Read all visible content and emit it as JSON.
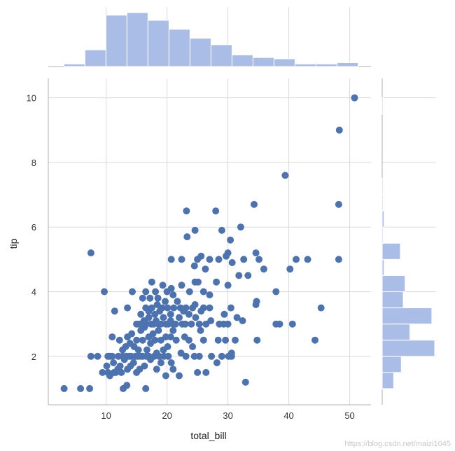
{
  "chart_data": {
    "type": "scatter",
    "xlabel": "total_bill",
    "ylabel": "tip",
    "xlim": [
      0.5,
      53.5
    ],
    "ylim": [
      0.5,
      10.6
    ],
    "xticks": [
      10,
      20,
      30,
      40,
      50
    ],
    "yticks": [
      2,
      4,
      6,
      8,
      10
    ],
    "grid": true,
    "point_color": "#4c72b0",
    "hist_color": "#a9bde6",
    "grid_color": "#d9d9d9",
    "points": [
      [
        3.1,
        1.0
      ],
      [
        5.8,
        1.0
      ],
      [
        7.3,
        1.0
      ],
      [
        16.5,
        1.0
      ],
      [
        13.4,
        1.1
      ],
      [
        12.8,
        1.0
      ],
      [
        7.5,
        5.2
      ],
      [
        9.7,
        4.0
      ],
      [
        14.3,
        4.0
      ],
      [
        17.5,
        4.3
      ],
      [
        11.4,
        3.4
      ],
      [
        13.5,
        3.5
      ],
      [
        7.5,
        2.0
      ],
      [
        8.6,
        2.0
      ],
      [
        9.4,
        1.5
      ],
      [
        10.1,
        1.7
      ],
      [
        10.3,
        1.5
      ],
      [
        10.6,
        1.4
      ],
      [
        10.3,
        2.0
      ],
      [
        10.6,
        2.0
      ],
      [
        11.0,
        2.0
      ],
      [
        11.2,
        1.8
      ],
      [
        11.3,
        1.5
      ],
      [
        11.6,
        1.5
      ],
      [
        11.9,
        1.6
      ],
      [
        12.0,
        2.0
      ],
      [
        12.3,
        1.7
      ],
      [
        12.5,
        1.5
      ],
      [
        12.7,
        2.0
      ],
      [
        13.0,
        1.9
      ],
      [
        13.3,
        2.0
      ],
      [
        13.5,
        1.6
      ],
      [
        13.8,
        2.0
      ],
      [
        14.0,
        1.7
      ],
      [
        14.1,
        2.0
      ],
      [
        14.5,
        1.8
      ],
      [
        14.8,
        2.0
      ],
      [
        15.0,
        1.5
      ],
      [
        15.2,
        2.0
      ],
      [
        15.5,
        1.6
      ],
      [
        15.7,
        2.0
      ],
      [
        16.0,
        2.0
      ],
      [
        16.3,
        1.7
      ],
      [
        16.6,
        2.0
      ],
      [
        17.0,
        2.0
      ],
      [
        17.3,
        1.9
      ],
      [
        17.9,
        2.0
      ],
      [
        18.3,
        1.6
      ],
      [
        18.7,
        2.0
      ],
      [
        19.0,
        1.8
      ],
      [
        19.5,
        2.0
      ],
      [
        19.8,
        1.4
      ],
      [
        20.2,
        2.0
      ],
      [
        20.7,
        1.8
      ],
      [
        21.0,
        1.6
      ],
      [
        22.0,
        1.4
      ],
      [
        23.1,
        2.0
      ],
      [
        24.5,
        2.0
      ],
      [
        25.0,
        1.5
      ],
      [
        25.3,
        2.0
      ],
      [
        26.4,
        1.5
      ],
      [
        27.3,
        2.0
      ],
      [
        28.2,
        1.8
      ],
      [
        30.1,
        2.0
      ],
      [
        30.6,
        2.0
      ],
      [
        32.9,
        1.2
      ],
      [
        11.0,
        2.6
      ],
      [
        12.2,
        2.5
      ],
      [
        12.7,
        2.2
      ],
      [
        13.2,
        2.3
      ],
      [
        13.5,
        2.6
      ],
      [
        13.9,
        2.4
      ],
      [
        14.2,
        2.7
      ],
      [
        14.6,
        2.3
      ],
      [
        15.0,
        2.5
      ],
      [
        15.3,
        2.2
      ],
      [
        15.7,
        2.8
      ],
      [
        16.0,
        2.5
      ],
      [
        16.3,
        2.9
      ],
      [
        16.7,
        2.2
      ],
      [
        17.0,
        2.6
      ],
      [
        17.3,
        2.4
      ],
      [
        17.7,
        2.7
      ],
      [
        18.0,
        2.5
      ],
      [
        18.3,
        2.1
      ],
      [
        18.6,
        2.8
      ],
      [
        19.0,
        2.5
      ],
      [
        19.4,
        2.2
      ],
      [
        19.8,
        2.6
      ],
      [
        20.1,
        2.3
      ],
      [
        20.6,
        2.6
      ],
      [
        21.0,
        2.8
      ],
      [
        21.5,
        2.5
      ],
      [
        22.3,
        2.1
      ],
      [
        22.9,
        2.6
      ],
      [
        23.6,
        2.5
      ],
      [
        24.2,
        2.3
      ],
      [
        25.5,
        2.8
      ],
      [
        26.0,
        2.5
      ],
      [
        28.4,
        2.5
      ],
      [
        29.0,
        2.0
      ],
      [
        29.6,
        2.5
      ],
      [
        30.6,
        2.1
      ],
      [
        31.2,
        2.5
      ],
      [
        34.8,
        2.5
      ],
      [
        44.3,
        2.5
      ],
      [
        15.0,
        3.0
      ],
      [
        15.4,
        3.0
      ],
      [
        15.8,
        3.0
      ],
      [
        16.2,
        3.1
      ],
      [
        16.6,
        3.0
      ],
      [
        17.0,
        3.2
      ],
      [
        17.4,
        3.0
      ],
      [
        17.8,
        3.0
      ],
      [
        18.2,
        3.1
      ],
      [
        18.6,
        3.0
      ],
      [
        19.0,
        3.0
      ],
      [
        19.4,
        3.2
      ],
      [
        19.8,
        3.0
      ],
      [
        20.2,
        3.0
      ],
      [
        20.6,
        3.1
      ],
      [
        21.0,
        3.0
      ],
      [
        21.4,
        3.0
      ],
      [
        22.0,
        3.2
      ],
      [
        22.5,
        3.0
      ],
      [
        23.0,
        3.0
      ],
      [
        24.0,
        3.0
      ],
      [
        24.7,
        3.2
      ],
      [
        25.3,
        3.0
      ],
      [
        26.4,
        3.0
      ],
      [
        27.2,
        3.1
      ],
      [
        28.6,
        3.0
      ],
      [
        29.3,
        3.0
      ],
      [
        30.0,
        3.0
      ],
      [
        31.5,
        3.2
      ],
      [
        32.4,
        3.1
      ],
      [
        37.9,
        3.0
      ],
      [
        38.5,
        3.0
      ],
      [
        40.6,
        3.0
      ],
      [
        15.7,
        3.3
      ],
      [
        16.5,
        3.5
      ],
      [
        17.0,
        3.4
      ],
      [
        17.5,
        3.5
      ],
      [
        18.0,
        3.3
      ],
      [
        18.4,
        3.6
      ],
      [
        18.8,
        3.4
      ],
      [
        19.2,
        3.5
      ],
      [
        19.7,
        3.7
      ],
      [
        20.1,
        3.5
      ],
      [
        20.6,
        3.3
      ],
      [
        21.1,
        3.5
      ],
      [
        21.7,
        3.7
      ],
      [
        22.2,
        3.5
      ],
      [
        22.7,
        3.4
      ],
      [
        23.1,
        3.5
      ],
      [
        23.6,
        3.3
      ],
      [
        24.2,
        3.5
      ],
      [
        24.6,
        3.6
      ],
      [
        25.6,
        3.4
      ],
      [
        26.0,
        3.5
      ],
      [
        27.0,
        3.5
      ],
      [
        29.4,
        3.3
      ],
      [
        30.5,
        3.5
      ],
      [
        16.0,
        3.8
      ],
      [
        16.5,
        4.0
      ],
      [
        17.2,
        3.8
      ],
      [
        18.1,
        4.0
      ],
      [
        18.5,
        3.8
      ],
      [
        19.3,
        4.2
      ],
      [
        20.0,
        4.0
      ],
      [
        20.7,
        4.1
      ],
      [
        21.0,
        3.9
      ],
      [
        22.4,
        4.2
      ],
      [
        23.7,
        4.0
      ],
      [
        24.6,
        4.3
      ],
      [
        25.1,
        4.3
      ],
      [
        26.0,
        4.0
      ],
      [
        27.0,
        3.9
      ],
      [
        28.1,
        4.3
      ],
      [
        30.0,
        4.2
      ],
      [
        31.8,
        4.5
      ],
      [
        34.6,
        3.6
      ],
      [
        34.7,
        3.7
      ],
      [
        37.9,
        4.0
      ],
      [
        45.3,
        3.5
      ],
      [
        20.7,
        5.0
      ],
      [
        22.4,
        5.0
      ],
      [
        24.5,
        4.8
      ],
      [
        25.0,
        5.0
      ],
      [
        25.6,
        5.1
      ],
      [
        26.3,
        4.7
      ],
      [
        27.0,
        5.0
      ],
      [
        28.5,
        5.0
      ],
      [
        29.7,
        5.1
      ],
      [
        30.0,
        5.2
      ],
      [
        30.7,
        4.9
      ],
      [
        32.6,
        5.0
      ],
      [
        33.3,
        4.5
      ],
      [
        34.6,
        5.2
      ],
      [
        35.1,
        5.0
      ],
      [
        35.9,
        4.7
      ],
      [
        40.2,
        4.7
      ],
      [
        41.2,
        5.0
      ],
      [
        43.1,
        5.0
      ],
      [
        48.2,
        5.0
      ],
      [
        23.3,
        5.7
      ],
      [
        24.6,
        5.9
      ],
      [
        28.0,
        6.5
      ],
      [
        29.0,
        5.9
      ],
      [
        30.4,
        5.6
      ],
      [
        32.1,
        6.0
      ],
      [
        34.3,
        6.7
      ],
      [
        23.2,
        6.5
      ],
      [
        39.4,
        7.6
      ],
      [
        48.2,
        6.7
      ],
      [
        48.3,
        9.0
      ],
      [
        50.8,
        10.0
      ]
    ],
    "x_histogram": {
      "bin_edges": [
        3.07,
        6.52,
        9.97,
        13.42,
        16.87,
        20.32,
        23.77,
        27.22,
        30.67,
        34.12,
        37.57,
        41.02,
        44.47,
        47.92,
        51.37
      ],
      "counts": [
        2,
        13,
        40,
        42,
        36,
        29,
        22,
        17,
        9,
        7,
        6,
        2,
        2,
        3
      ]
    },
    "y_histogram": {
      "bin_edges": [
        1.0,
        1.5,
        2.0,
        2.5,
        3.0,
        3.5,
        4.0,
        4.5,
        5.0,
        5.5,
        6.0,
        6.5,
        7.0,
        7.5,
        8.0,
        8.5,
        9.0,
        9.5,
        10.0
      ],
      "counts": [
        12,
        20,
        55,
        29,
        52,
        22,
        24,
        2,
        19,
        1,
        2,
        1,
        1,
        0,
        0,
        0,
        0,
        1
      ]
    }
  },
  "watermark": "https://blog.csdn.net/maizi1045"
}
